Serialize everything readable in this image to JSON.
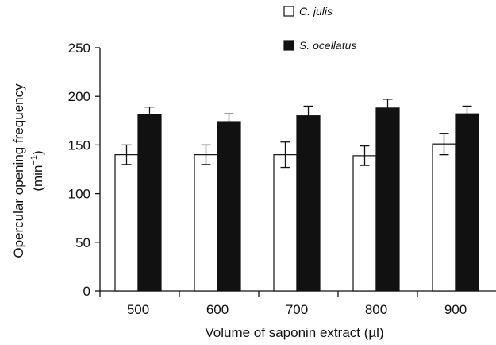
{
  "chart_data": {
    "type": "bar",
    "categories": [
      "500",
      "600",
      "700",
      "800",
      "900"
    ],
    "series": [
      {
        "name": "C. julis",
        "color": "#ffffff",
        "values": [
          140,
          140,
          140,
          139,
          151
        ],
        "errors": [
          10,
          10,
          13,
          10,
          11
        ]
      },
      {
        "name": "S. ocellatus",
        "color": "#111111",
        "values": [
          181,
          174,
          180,
          188,
          182
        ],
        "errors": [
          8,
          8,
          10,
          9,
          8
        ]
      }
    ],
    "xlabel": "Volume of saponin extract (µl)",
    "ylabel_line1": "Opercular opening frequency",
    "ylabel_line2_base": "(min",
    "ylabel_line2_sup": "−1",
    "ylabel_line2_end": ")",
    "ylim": [
      0,
      250
    ],
    "yticks": [
      "0",
      "50",
      "100",
      "150",
      "200",
      "250"
    ],
    "grid": false,
    "legend_position": "top-right"
  }
}
